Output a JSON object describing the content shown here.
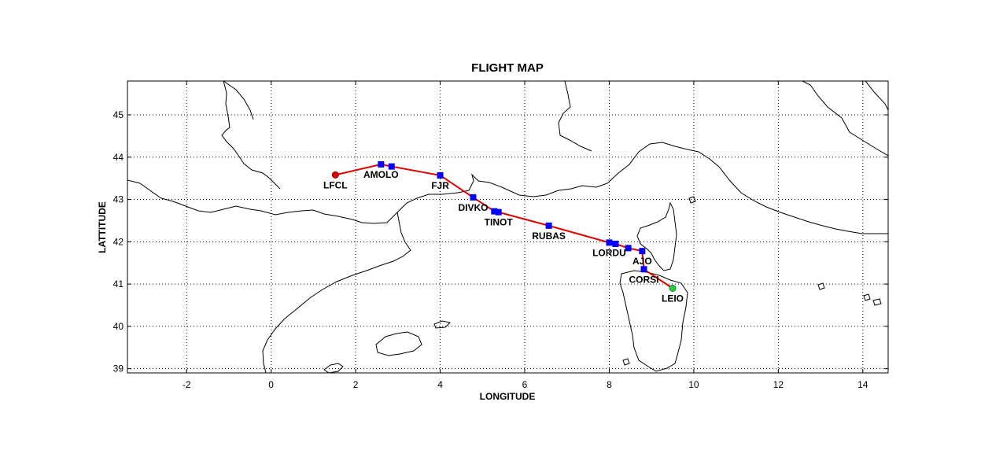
{
  "chart_data": {
    "type": "line",
    "title": "FLIGHT MAP",
    "xlabel": "LONGITUDE",
    "ylabel": "LATTITUDE",
    "xlim": [
      -3.4,
      14.6
    ],
    "ylim": [
      38.9,
      45.8
    ],
    "xticks": [
      -2,
      0,
      2,
      4,
      6,
      8,
      10,
      12,
      14
    ],
    "yticks": [
      39,
      40,
      41,
      42,
      43,
      44,
      45
    ],
    "grid": true,
    "colors": {
      "route": "#e00000",
      "waypoint": "#0000ff",
      "start": "#e00000",
      "end": "#33cc33"
    },
    "route": [
      {
        "lon": 1.52,
        "lat": 43.58
      },
      {
        "lon": 2.6,
        "lat": 43.83
      },
      {
        "lon": 2.85,
        "lat": 43.78
      },
      {
        "lon": 4.0,
        "lat": 43.57
      },
      {
        "lon": 4.78,
        "lat": 43.05
      },
      {
        "lon": 5.28,
        "lat": 42.72
      },
      {
        "lon": 5.38,
        "lat": 42.7
      },
      {
        "lon": 6.57,
        "lat": 42.38
      },
      {
        "lon": 8.0,
        "lat": 41.98
      },
      {
        "lon": 8.15,
        "lat": 41.95
      },
      {
        "lon": 8.45,
        "lat": 41.85
      },
      {
        "lon": 8.78,
        "lat": 41.78
      },
      {
        "lon": 8.82,
        "lat": 41.35
      },
      {
        "lon": 9.5,
        "lat": 40.9
      }
    ],
    "labeled_waypoints": [
      {
        "name": "LFCL",
        "lon": 1.52,
        "lat": 43.58
      },
      {
        "name": "AMOLO",
        "lon": 2.6,
        "lat": 43.83
      },
      {
        "name": "FJR",
        "lon": 4.0,
        "lat": 43.57
      },
      {
        "name": "DIVKO",
        "lon": 4.78,
        "lat": 43.05
      },
      {
        "name": "TINOT",
        "lon": 5.38,
        "lat": 42.7
      },
      {
        "name": "RUBAS",
        "lon": 6.57,
        "lat": 42.38
      },
      {
        "name": "LORDU",
        "lon": 8.0,
        "lat": 41.98
      },
      {
        "name": "AJO",
        "lon": 8.78,
        "lat": 41.78
      },
      {
        "name": "CORSI",
        "lon": 8.82,
        "lat": 41.35
      },
      {
        "name": "LEIO",
        "lon": 9.5,
        "lat": 40.9
      }
    ]
  }
}
